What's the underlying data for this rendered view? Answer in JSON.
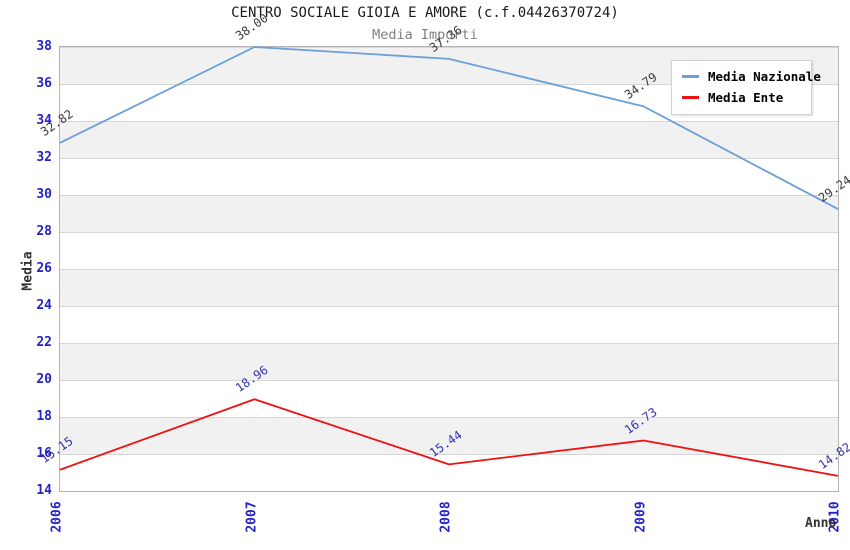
{
  "chart_data": {
    "type": "line",
    "title": "CENTRO SOCIALE GIOIA E AMORE (c.f.04426370724)",
    "subtitle": "Media Importi",
    "xlabel": "Anno",
    "ylabel": "Media",
    "categories": [
      "2006",
      "2007",
      "2008",
      "2009",
      "2010"
    ],
    "ylim": [
      14,
      38
    ],
    "ytick_step": 2,
    "grid": "horizontal-bands",
    "legend_position": "top-right",
    "series": [
      {
        "name": "Media Nazionale",
        "color": "#6B9FD8",
        "label_color": "#3B3B3B",
        "values": [
          32.82,
          38.0,
          37.36,
          34.79,
          29.24
        ]
      },
      {
        "name": "Media Ente",
        "color": "#EE1111",
        "label_color": "#3434AE",
        "values": [
          15.15,
          18.96,
          15.44,
          16.73,
          14.82
        ]
      }
    ]
  },
  "theme": {
    "axis_tick_color": "#2323C8",
    "band_color": "#F1F1F1",
    "grid_line_color": "#D6D6D6",
    "plot_border_color": "#B5B5B5",
    "title_color": "#1A1A1A",
    "subtitle_color": "#808080"
  }
}
